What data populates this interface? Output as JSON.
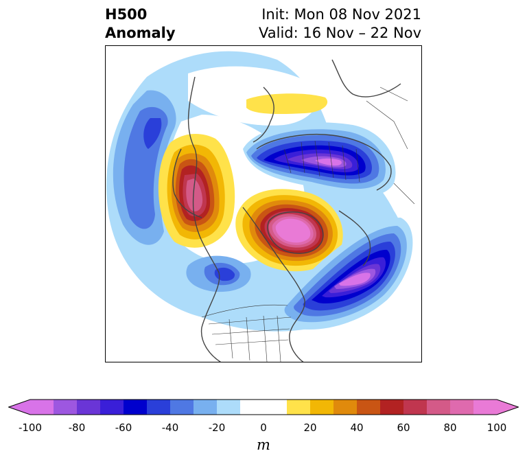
{
  "title": {
    "left_line1": "H500",
    "left_line2": "Anomaly",
    "right_line1": "Init: Mon 08 Nov 2021",
    "right_line2": "Valid: 16 Nov – 22 Nov"
  },
  "colorbar": {
    "unit": "m",
    "ticks": [
      "-100",
      "-80",
      "-60",
      "-40",
      "-20",
      "0",
      "20",
      "40",
      "60",
      "80",
      "100"
    ],
    "colors": [
      "#d873e8",
      "#9d57e0",
      "#6a35d6",
      "#3a1fd8",
      "#0000cd",
      "#2a3fd9",
      "#4f78e3",
      "#78b0ef",
      "#addcfa",
      "#ffffff",
      "#ffffff",
      "#ffe24a",
      "#f2b705",
      "#e08a0c",
      "#c95514",
      "#b22222",
      "#c0364f",
      "#d45a88",
      "#df6aae",
      "#e97ad6"
    ]
  },
  "map": {
    "projection": "north-polar-stereographic",
    "field": "500 hPa geopotential height anomaly",
    "features": [
      "negative anomaly over Pacific / Gulf of Alaska",
      "positive anomaly over Bering Sea / western Alaska",
      "strong positive anomaly over Greenland",
      "strong negative anomaly over northern Siberia",
      "negative anomaly over western Atlantic",
      "negative anomaly over western Canada",
      "weak positive anomaly over Kamchatka region"
    ]
  }
}
